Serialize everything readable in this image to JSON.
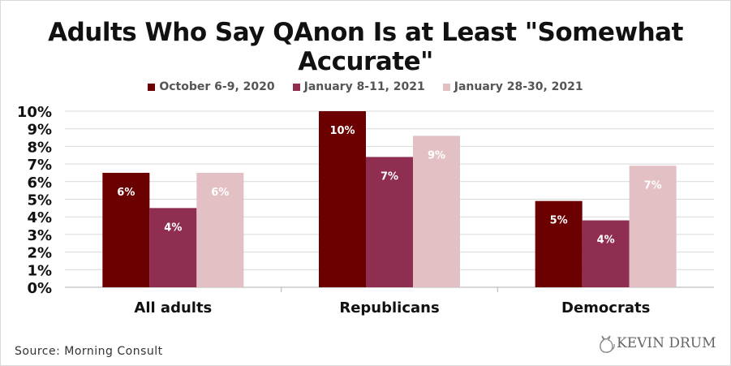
{
  "chart_data": {
    "type": "bar",
    "title": "Adults Who Say QAnon Is at Least \"Somewhat Accurate\"",
    "categories": [
      "All adults",
      "Republicans",
      "Democrats"
    ],
    "series": [
      {
        "name": "October 6-9, 2020",
        "color": "#6b0000",
        "values": [
          6.5,
          10.0,
          4.9
        ],
        "labels": [
          "6%",
          "10%",
          "5%"
        ]
      },
      {
        "name": "January 8-11, 2021",
        "color": "#8f2e50",
        "values": [
          4.5,
          7.4,
          3.8
        ],
        "labels": [
          "4%",
          "7%",
          "4%"
        ]
      },
      {
        "name": "January 28-30, 2021",
        "color": "#e2c0c4",
        "values": [
          6.5,
          8.6,
          6.9
        ],
        "labels": [
          "6%",
          "9%",
          "7%"
        ]
      }
    ],
    "ylim": [
      0,
      10
    ],
    "yticks": [
      "0%",
      "1%",
      "2%",
      "3%",
      "4%",
      "5%",
      "6%",
      "7%",
      "8%",
      "9%",
      "10%"
    ],
    "grid": true,
    "legend_position": "top"
  },
  "source": "Source: Morning Consult",
  "logo_text": "KEVIN DRUM"
}
